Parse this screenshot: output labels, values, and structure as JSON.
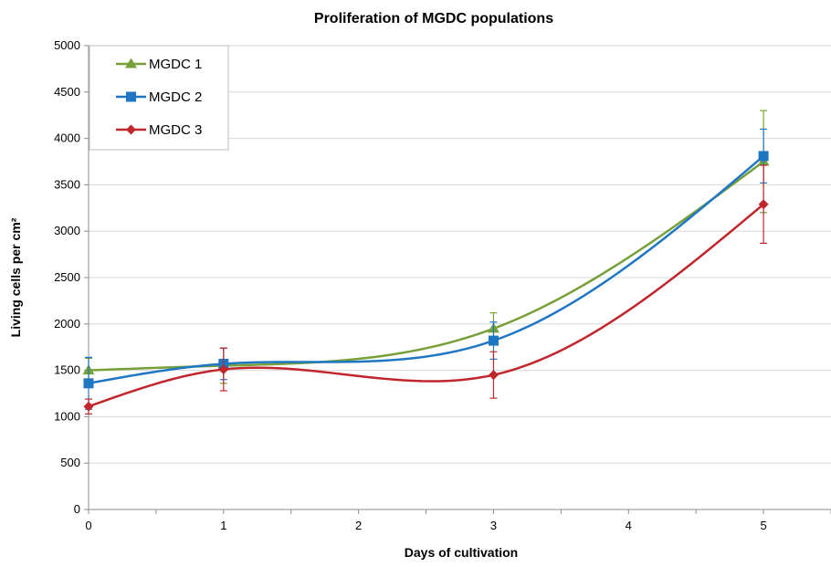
{
  "chart_data": {
    "type": "line",
    "title": "Proliferation of MGDC populations",
    "xlabel": "Days of cultivation",
    "ylabel": "Living cells per cm²",
    "xlim": [
      0,
      5.5
    ],
    "ylim": [
      0,
      5000
    ],
    "x_ticks": [
      0,
      1,
      2,
      3,
      4,
      5
    ],
    "y_ticks": [
      0,
      500,
      1000,
      1500,
      2000,
      2500,
      3000,
      3500,
      4000,
      4500,
      5000
    ],
    "grid": "horizontal",
    "legend_position": "top-left",
    "smooth": true,
    "x": [
      0,
      1,
      3,
      5
    ],
    "series": [
      {
        "name": "MGDC 1",
        "color": "#77a03a",
        "marker": "triangle",
        "values": [
          1500,
          1550,
          1950,
          3750
        ],
        "errors": [
          130,
          190,
          170,
          550
        ]
      },
      {
        "name": "MGDC 2",
        "color": "#1f77c4",
        "marker": "square",
        "values": [
          1360,
          1570,
          1820,
          3810
        ],
        "errors": [
          280,
          170,
          200,
          290
        ]
      },
      {
        "name": "MGDC 3",
        "color": "#c0272d",
        "marker": "diamond",
        "values": [
          1110,
          1510,
          1450,
          3290
        ],
        "errors": [
          80,
          230,
          250,
          420
        ]
      }
    ]
  }
}
